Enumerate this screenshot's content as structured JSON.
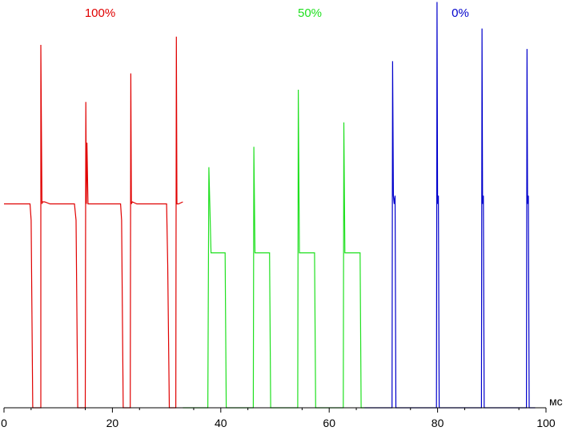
{
  "chart_data": {
    "type": "line",
    "xlabel": "",
    "ylabel": "",
    "x_unit_label": "мс",
    "xlim": [
      0,
      100
    ],
    "x_ticks": [
      0,
      20,
      40,
      60,
      80,
      100
    ],
    "x_tick_labels": [
      "0",
      "20",
      "40",
      "60",
      "80",
      "100"
    ],
    "ylim": [
      0,
      1
    ],
    "grid": false,
    "legend": "none",
    "series": [
      {
        "name": "100%",
        "color": "#e00000",
        "x": [
          0.0,
          4.8,
          5.0,
          5.3,
          6.8,
          6.8,
          7.0,
          7.1,
          7.5,
          8.5,
          13.0,
          13.3,
          13.6,
          15.0,
          15.1,
          15.2,
          15.3,
          15.5,
          16.0,
          21.5,
          21.7,
          22.0,
          23.3,
          23.4,
          23.5,
          23.7,
          24.5,
          30.0,
          30.2,
          30.5,
          31.7,
          31.8,
          31.9,
          32.2,
          33.0
        ],
        "y": [
          0.5,
          0.5,
          0.46,
          0.0,
          0.0,
          0.89,
          0.5,
          0.505,
          0.505,
          0.5,
          0.5,
          0.46,
          0.0,
          0.0,
          0.75,
          0.5,
          0.65,
          0.5,
          0.5,
          0.5,
          0.46,
          0.0,
          0.0,
          0.82,
          0.5,
          0.505,
          0.5,
          0.5,
          0.35,
          0.0,
          0.0,
          0.91,
          0.5,
          0.5,
          0.505
        ]
      },
      {
        "name": "50%",
        "color": "#20e020",
        "x": [
          33.0,
          37.6,
          37.8,
          38.2,
          39.0,
          40.8,
          41.0,
          46.0,
          46.1,
          46.3,
          47.0,
          49.0,
          49.2,
          54.2,
          54.3,
          54.5,
          55.2,
          57.3,
          57.5,
          62.6,
          62.7,
          62.9,
          63.6,
          65.7,
          65.9,
          66.5
        ],
        "y": [
          0.0,
          0.0,
          0.59,
          0.38,
          0.38,
          0.38,
          0.0,
          0.0,
          0.64,
          0.38,
          0.38,
          0.38,
          0.0,
          0.0,
          0.78,
          0.38,
          0.38,
          0.38,
          0.0,
          0.0,
          0.7,
          0.38,
          0.38,
          0.38,
          0.0,
          0.0
        ]
      },
      {
        "name": "0%",
        "color": "#0000cc",
        "x": [
          66.5,
          71.6,
          71.7,
          71.85,
          72.0,
          72.15,
          72.3,
          79.8,
          79.9,
          80.0,
          80.15,
          80.3,
          88.1,
          88.2,
          88.3,
          88.45,
          88.6,
          96.4,
          96.5,
          96.6,
          96.75,
          96.9,
          98.0
        ],
        "y": [
          0.0,
          0.0,
          0.85,
          0.52,
          0.5,
          0.52,
          0.0,
          0.0,
          0.995,
          0.5,
          0.52,
          0.0,
          0.0,
          0.93,
          0.5,
          0.52,
          0.0,
          0.0,
          0.88,
          0.5,
          0.52,
          0.0,
          0.0
        ]
      }
    ]
  }
}
